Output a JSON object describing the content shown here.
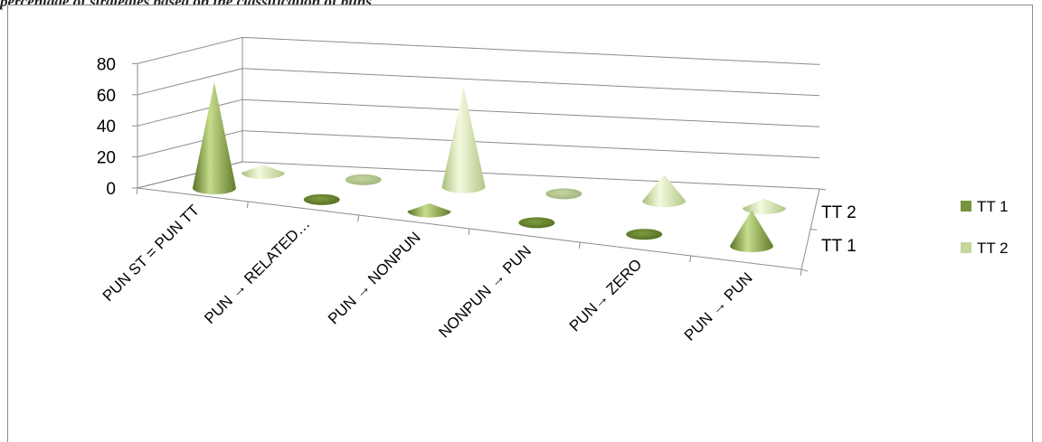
{
  "caption": "percentage of strategies based on the classification of puns",
  "colors": {
    "tt1": "#77933c",
    "tt2": "#c3d69b",
    "grid": "#8c8c8c"
  },
  "chart_data": {
    "type": "bar",
    "subtype": "3d-cone",
    "title": "",
    "xlabel": "",
    "ylabel": "",
    "ylim": [
      0,
      80
    ],
    "yticks": [
      "0",
      "20",
      "40",
      "60",
      "80"
    ],
    "depth_labels": [
      "TT 1",
      "TT 2"
    ],
    "categories": [
      "PUN ST = PUN TT",
      "PUN → RELATED…",
      "PUN → NONPUN",
      "NONPUN → PUN",
      "PUN→ ZERO",
      "PUN → PUN"
    ],
    "series": [
      {
        "name": "TT 1",
        "values": [
          68,
          0,
          5,
          0,
          0,
          23
        ]
      },
      {
        "name": "TT 2",
        "values": [
          5,
          0,
          64,
          0,
          17,
          6
        ]
      }
    ],
    "legend": {
      "position": "right",
      "items": [
        "TT 1",
        "TT 2"
      ]
    },
    "grid": true
  }
}
